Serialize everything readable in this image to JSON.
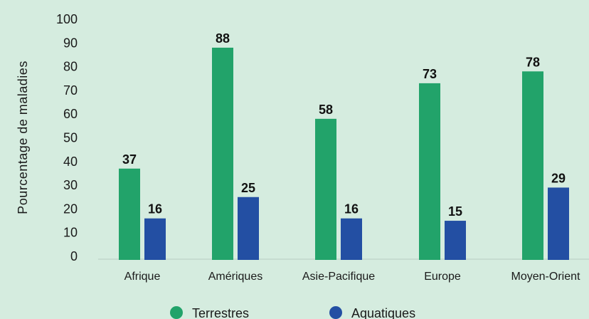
{
  "chart_data": {
    "type": "bar",
    "title": "",
    "xlabel": "",
    "ylabel": "Pourcentage de maladies",
    "ylim": [
      0,
      100
    ],
    "yticks": [
      0,
      10,
      20,
      30,
      40,
      50,
      60,
      70,
      80,
      90,
      100
    ],
    "categories": [
      "Afrique",
      "Amériques",
      "Asie-Pacifique",
      "Europe",
      "Moyen-Orient"
    ],
    "series": [
      {
        "name": "Terrestres",
        "color": "#22a36a",
        "values": [
          37,
          88,
          58,
          73,
          78
        ]
      },
      {
        "name": "Aquatiques",
        "color": "#234fa3",
        "values": [
          16,
          25,
          16,
          15,
          29
        ]
      }
    ],
    "legend_position": "bottom",
    "grid": false
  }
}
